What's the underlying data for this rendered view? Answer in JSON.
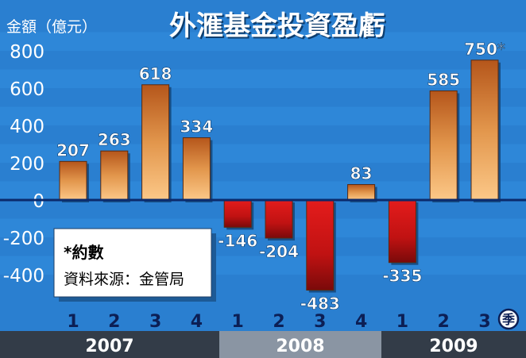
{
  "chart_data": {
    "type": "bar",
    "title": "外滙基金投資盈虧",
    "ylabel": "金額（億元）",
    "ylim": [
      -500,
      850
    ],
    "yticks": [
      800,
      600,
      400,
      200,
      0,
      -200,
      -400
    ],
    "quarter_unit_label": "季",
    "years": [
      {
        "label": "2007",
        "quarters": [
          "1",
          "2",
          "3",
          "4"
        ]
      },
      {
        "label": "2008",
        "quarters": [
          "1",
          "2",
          "3",
          "4"
        ]
      },
      {
        "label": "2009",
        "quarters": [
          "1",
          "2",
          "3"
        ]
      }
    ],
    "values": [
      207,
      263,
      618,
      334,
      -146,
      -204,
      -483,
      83,
      -335,
      585,
      750
    ],
    "value_labels": [
      "207",
      "263",
      "618",
      "334",
      "-146",
      "-204",
      "-483",
      "83",
      "-335",
      "585",
      "750"
    ],
    "approx_marker": "*",
    "approx_index": 10
  },
  "note": {
    "line1": "*約數",
    "line2": "資料來源：金管局"
  },
  "colors": {
    "background": "#2a7fd0",
    "band": "#2f88d8",
    "positive_top": "#b5561b",
    "positive_bottom": "#fcc888",
    "negative_top": "#e41c1c",
    "negative_bottom": "#7a0a0a",
    "zero_line": "#0b2a6b",
    "year_bar_dark": "#333c48",
    "year_bar_light": "#8a95a3"
  }
}
